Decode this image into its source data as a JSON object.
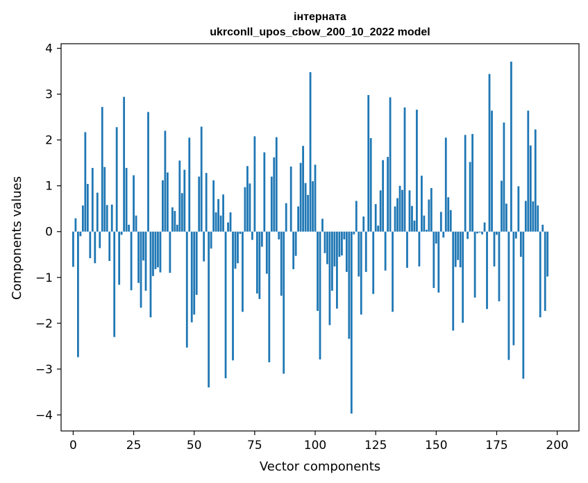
{
  "chart_data": {
    "type": "bar",
    "title": "інтерната",
    "subtitle": "ukrconll_upos_cbow_200_10_2022 model",
    "xlabel": "Vector components",
    "ylabel": "Components values",
    "xlim": [
      -5,
      209
    ],
    "ylim": [
      -4.35,
      4.1
    ],
    "xticks": [
      0,
      25,
      50,
      75,
      100,
      125,
      150,
      175,
      200
    ],
    "yticks": [
      -4,
      -3,
      -2,
      -1,
      0,
      1,
      2,
      3,
      4
    ],
    "xtick_labels": [
      "0",
      "25",
      "50",
      "75",
      "100",
      "125",
      "150",
      "175",
      "200"
    ],
    "ytick_labels": [
      "−4",
      "−3",
      "−2",
      "−1",
      "0",
      "1",
      "2",
      "3",
      "4"
    ],
    "bar_color": "#1f77b4",
    "grid": false,
    "series": [
      {
        "values": [
          -0.77,
          0.29,
          -2.74,
          -0.1,
          0.57,
          2.17,
          1.04,
          -0.58,
          1.39,
          -0.69,
          0.85,
          -0.36,
          2.72,
          1.41,
          0.58,
          -0.64,
          0.59,
          -2.3,
          2.28,
          -1.16,
          -0.07,
          2.94,
          1.39,
          0.15,
          -1.28,
          1.23,
          0.35,
          -1.12,
          -1.66,
          -0.63,
          -1.29,
          2.61,
          -1.87,
          -0.97,
          -0.82,
          -0.78,
          -0.89,
          1.12,
          2.2,
          1.29,
          -0.9,
          0.53,
          0.45,
          0.15,
          1.55,
          0.84,
          1.35,
          -2.53,
          2.05,
          -1.98,
          -1.81,
          -1.38,
          1.2,
          2.29,
          -0.65,
          1.28,
          -3.4,
          -0.37,
          1.12,
          0.42,
          0.71,
          0.35,
          0.81,
          -3.2,
          0.2,
          0.42,
          -2.81,
          -0.81,
          -0.69,
          -0.05,
          -1.75,
          0.97,
          1.43,
          1.05,
          -0.18,
          2.08,
          -1.35,
          -1.47,
          -0.33,
          1.73,
          -0.92,
          -2.85,
          1.2,
          1.62,
          2.06,
          -0.17,
          -1.4,
          -3.1,
          0.62,
          0.0,
          1.42,
          -0.82,
          -0.53,
          0.55,
          1.5,
          1.87,
          1.06,
          0.8,
          3.48,
          1.1,
          1.46,
          -1.73,
          -2.79,
          0.28,
          -0.47,
          -0.71,
          -2.04,
          -1.29,
          -0.76,
          -1.68,
          -0.55,
          -0.52,
          -0.17,
          -0.88,
          -2.34,
          -3.97,
          -0.06,
          0.67,
          -0.98,
          -1.81,
          0.33,
          -0.88,
          2.98,
          2.04,
          -1.36,
          0.6,
          0.13,
          0.9,
          1.56,
          -0.85,
          1.63,
          2.93,
          -1.75,
          0.55,
          0.73,
          1.0,
          0.91,
          2.71,
          -0.79,
          0.9,
          0.56,
          0.24,
          2.66,
          -0.76,
          1.22,
          0.35,
          0.04,
          0.7,
          0.95,
          -1.23,
          -0.26,
          -1.33,
          0.43,
          -0.13,
          2.05,
          0.75,
          0.47,
          -2.16,
          -0.77,
          -0.62,
          -0.78,
          -1.99,
          2.11,
          -0.16,
          1.52,
          2.13,
          -1.44,
          -0.04,
          -0.02,
          -0.06,
          0.2,
          -1.69,
          3.44,
          2.64,
          -0.76,
          -0.07,
          -1.52,
          1.11,
          2.38,
          0.61,
          -2.8,
          3.71,
          -2.48,
          -0.15,
          0.99,
          -0.55,
          -3.21,
          0.67,
          2.64,
          1.88,
          0.66,
          2.23,
          0.57,
          -1.87,
          0.15,
          -1.73,
          -0.98
        ]
      }
    ]
  }
}
